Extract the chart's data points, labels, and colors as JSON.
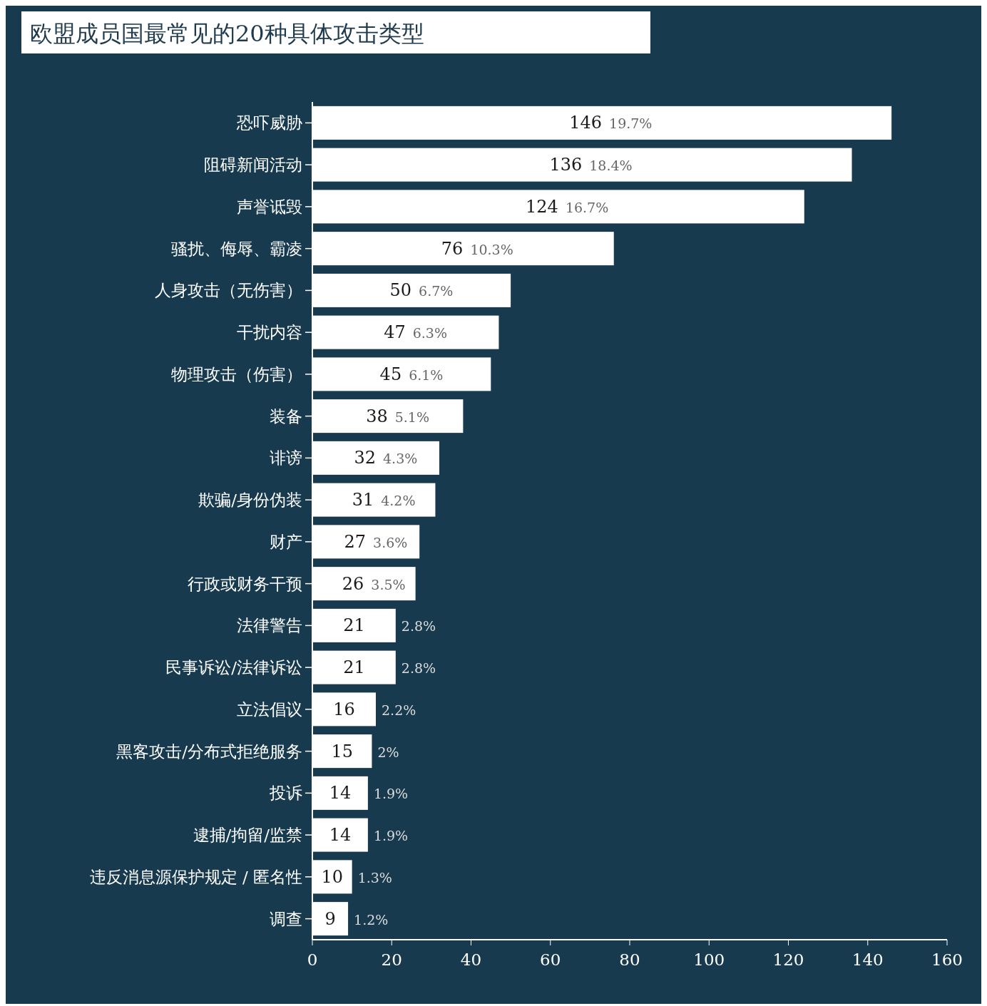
{
  "chart_data": {
    "type": "bar",
    "orientation": "horizontal",
    "title": "欧盟成员国最常见的20种具体攻击类型",
    "categories": [
      "恐吓威胁",
      "阻碍新闻活动",
      "声誉诋毁",
      "骚扰、侮辱、霸凌",
      "人身攻击（无伤害）",
      "干扰内容",
      "物理攻击（伤害）",
      "装备",
      "诽谤",
      "欺骗/身份伪装",
      "财产",
      "行政或财务干预",
      "法律警告",
      "民事诉讼/法律诉讼",
      "立法倡议",
      "黑客攻击/分布式拒绝服务",
      "投诉",
      "逮捕/拘留/监禁",
      "违反消息源保护规定 / 匿名性",
      "调查"
    ],
    "values": [
      146,
      136,
      124,
      76,
      50,
      47,
      45,
      38,
      32,
      31,
      27,
      26,
      21,
      21,
      16,
      15,
      14,
      14,
      10,
      9
    ],
    "value_labels": [
      "146 19.7%",
      "136 18.4%",
      "124 16.7%",
      "76 10.3%",
      "50 6.7%",
      "47 6.3%",
      "45 6.1%",
      "38 5.1%",
      "32 4.3%",
      "31 4.2%",
      "27 3.6%",
      "26 3.5%",
      "21 2.8%",
      "21 2.8%",
      "16 2.2%",
      "15 2%",
      "14 1.9%",
      "14 1.9%",
      "10 1.3%",
      "9 1.2%"
    ],
    "color": "#ffffff",
    "xlim": [
      0,
      160
    ],
    "xticks": [
      0,
      20,
      40,
      60,
      80,
      100,
      120,
      140,
      160
    ]
  }
}
